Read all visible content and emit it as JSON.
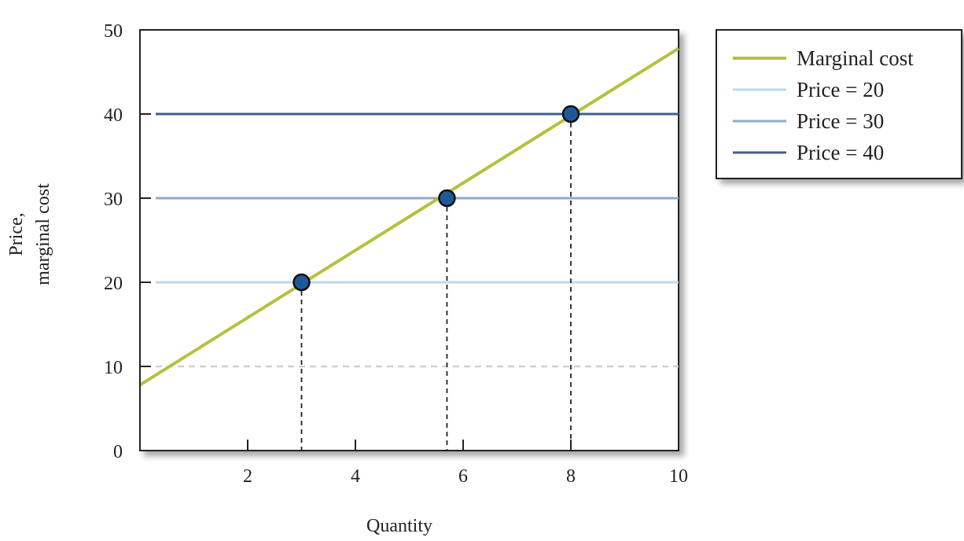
{
  "chart_data": {
    "type": "line",
    "xlabel": "Quantity",
    "ylabel": [
      "Price,",
      "marginal cost"
    ],
    "xlim": [
      0,
      10
    ],
    "ylim": [
      0,
      50
    ],
    "xticks": [
      2,
      4,
      6,
      8,
      10
    ],
    "yticks": [
      0,
      10,
      20,
      30,
      40,
      50
    ],
    "grid": false,
    "legend_position": "right",
    "series": [
      {
        "name": "Marginal cost",
        "kind": "line",
        "color": "#b5c13d",
        "x": [
          0,
          10
        ],
        "y": [
          7.8,
          47.8
        ]
      },
      {
        "name": "Price = 20",
        "kind": "hline",
        "color": "#bcd8ef",
        "y": 20
      },
      {
        "name": "Price = 30",
        "kind": "hline",
        "color": "#8fa8cc",
        "y": 30
      },
      {
        "name": "Price = 40",
        "kind": "hline",
        "color": "#3f5f8f",
        "y": 40
      }
    ],
    "reference_line": {
      "y": 10,
      "style": "dashed",
      "color": "#d0d0d0"
    },
    "points": [
      {
        "x": 3.0,
        "y": 20
      },
      {
        "x": 5.7,
        "y": 30
      },
      {
        "x": 8.0,
        "y": 40
      }
    ],
    "point_color": "#1f5a96"
  }
}
